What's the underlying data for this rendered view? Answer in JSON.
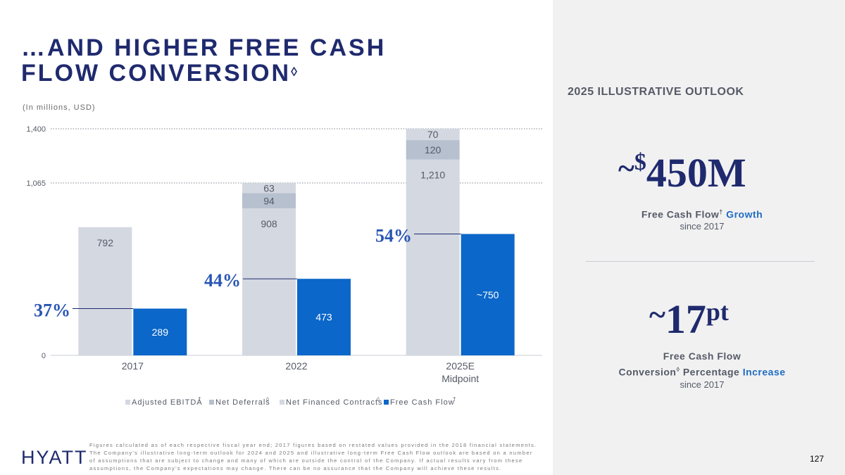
{
  "title": {
    "line1": "…AND HIGHER FREE CASH",
    "line2": "FLOW CONVERSION",
    "mark": "◊"
  },
  "units": "(In millions,  USD)",
  "chart_data": {
    "type": "bar",
    "categories": [
      [
        "2017"
      ],
      [
        "2022"
      ],
      [
        "2025E",
        "Midpoint"
      ]
    ],
    "yticks": [
      0,
      1065,
      1400
    ],
    "ytick_labels": [
      "0",
      "1,065",
      "1,400"
    ],
    "ylim": [
      0,
      1400
    ],
    "series": [
      {
        "name": "Adjusted  EBITDA",
        "mark": "†",
        "values": [
          792,
          908,
          1210
        ],
        "labels": [
          "792",
          "908",
          "1,210"
        ],
        "color": "#d3d8e1",
        "stack": "a"
      },
      {
        "name": "Net Deferrals",
        "mark": "◊",
        "values": [
          0,
          94,
          120
        ],
        "labels": [
          "",
          "94",
          "120"
        ],
        "color": "#b7c0ce",
        "stack": "a"
      },
      {
        "name": "Net Financed  Contracts",
        "mark": "◊",
        "values": [
          0,
          63,
          70
        ],
        "labels": [
          "",
          "63",
          "70"
        ],
        "color": "#d3d8e1",
        "stack": "a"
      },
      {
        "name": "Free  Cash  Flow",
        "mark": "†",
        "values": [
          289,
          473,
          750
        ],
        "labels": [
          "289",
          "473",
          "~750"
        ],
        "color": "#0b67c9",
        "stack": "b"
      }
    ],
    "conversion_labels": [
      "37%",
      "44%",
      "54%"
    ],
    "grid_dotted_at": [
      1065,
      1400
    ],
    "legend_position": "bottom"
  },
  "outlook": {
    "header": "2025 ILLUSTRATIVE OUTLOOK",
    "item1": {
      "tilde": "~",
      "sup": "$",
      "main": "450M",
      "caption_a": "Free Cash Flow",
      "caption_mark": "†",
      "caption_hl": " Growth",
      "since": "since 2017"
    },
    "item2": {
      "tilde": "~",
      "main": "17",
      "sup": "pt",
      "caption_line1": "Free Cash Flow",
      "caption_line2a": "Conversion",
      "caption_mark": "◊",
      "caption_line2b": " Percentage ",
      "caption_hl": "Increase",
      "since": "since 2017"
    }
  },
  "footnote": "Figures  calculated  as of  each  respective  fiscal  year end;  2017 figures  based  on  restated  values  provided  in the  2018  financial  statements. The  Company's  illustrative  long-term  outlook  for 2024  and  2025  and  illustrative  long-term  Free  Cash  Flow  outlook  are  based  on  a number  of assumptions  that  are  subject  to change  and  many  of  which  are  outside  the  control  of  the  Company.  If actual  results  vary  from  these assumptions,  the  Company's  expectations  may  change.  There  can  be  no  assurance  that  the  Company  will achieve  these  results.",
  "logo": "HYATT",
  "page_number": "127",
  "colors": {
    "navy": "#1f2a6e",
    "blue": "#0b67c9",
    "gray_bar": "#d3d8e1",
    "gray_mid": "#b7c0ce"
  }
}
